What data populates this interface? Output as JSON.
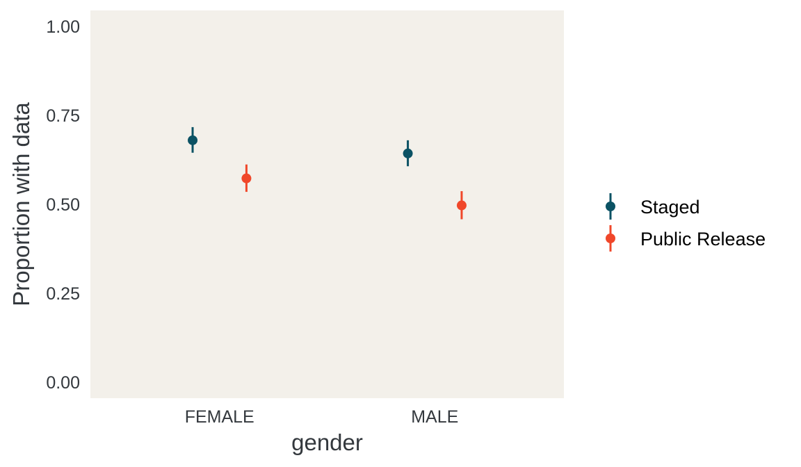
{
  "chart_data": {
    "type": "pointrange",
    "title": "",
    "xlabel": "gender",
    "ylabel": "Proportion with data",
    "categories": [
      "FEMALE",
      "MALE"
    ],
    "ylim": [
      -0.045,
      1.045
    ],
    "yticks": [
      0.0,
      0.25,
      0.5,
      0.75,
      1.0
    ],
    "ytick_labels": [
      "0.00",
      "0.25",
      "0.50",
      "0.75",
      "1.00"
    ],
    "grid": false,
    "legend_position": "right",
    "series": [
      {
        "name": "Staged",
        "color": "#0b5264",
        "values": [
          0.68,
          0.643
        ],
        "lower": [
          0.645,
          0.607
        ],
        "upper": [
          0.717,
          0.68
        ]
      },
      {
        "name": "Public Release",
        "color": "#f0472a",
        "values": [
          0.573,
          0.497
        ],
        "lower": [
          0.535,
          0.458
        ],
        "upper": [
          0.612,
          0.537
        ]
      }
    ],
    "panel_background": "#f3f0ea"
  }
}
